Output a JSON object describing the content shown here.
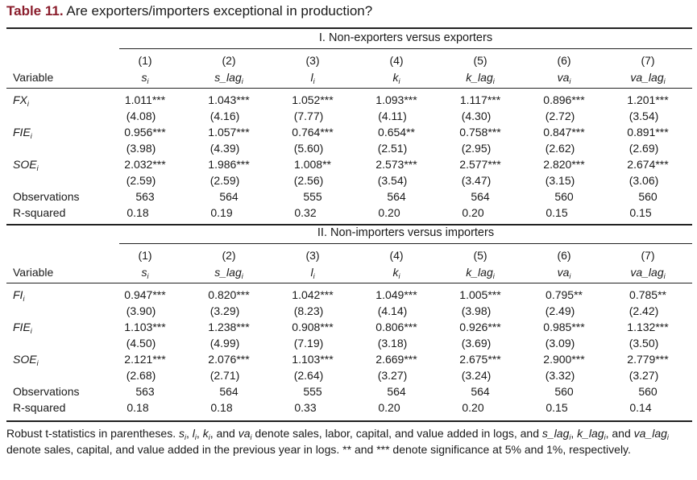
{
  "title": {
    "label": "Table 11.",
    "text": "Are exporters/importers exceptional in production?"
  },
  "variable_header": "Variable",
  "panels": [
    {
      "heading": "I. Non-exporters versus exporters",
      "columns": [
        {
          "num": "(1)",
          "base": "s",
          "sub": "i"
        },
        {
          "num": "(2)",
          "base": "s_lag",
          "sub": "i"
        },
        {
          "num": "(3)",
          "base": "l",
          "sub": "i"
        },
        {
          "num": "(4)",
          "base": "k",
          "sub": "i"
        },
        {
          "num": "(5)",
          "base": "k_lag",
          "sub": "i"
        },
        {
          "num": "(6)",
          "base": "va",
          "sub": "i"
        },
        {
          "num": "(7)",
          "base": "va_lag",
          "sub": "i"
        }
      ],
      "rows": [
        {
          "var": "FX",
          "sub": "i",
          "coef": [
            "1.011***",
            "1.043***",
            "1.052***",
            "1.093***",
            "1.117***",
            "0.896***",
            "1.201***"
          ],
          "t": [
            "(4.08)",
            "(4.16)",
            "(7.77)",
            "(4.11)",
            "(4.30)",
            "(2.72)",
            "(3.54)"
          ]
        },
        {
          "var": "FIE",
          "sub": "i",
          "coef": [
            "0.956***",
            "1.057***",
            "0.764***",
            "0.654**",
            "0.758***",
            "0.847***",
            "0.891***"
          ],
          "t": [
            "(3.98)",
            "(4.39)",
            "(5.60)",
            "(2.51)",
            "(2.95)",
            "(2.62)",
            "(2.69)"
          ]
        },
        {
          "var": "SOE",
          "sub": "i",
          "coef": [
            "2.032***",
            "1.986***",
            "1.008**",
            "2.573***",
            "2.577***",
            "2.820***",
            "2.674***"
          ],
          "t": [
            "(2.59)",
            "(2.59)",
            "(2.56)",
            "(3.54)",
            "(3.47)",
            "(3.15)",
            "(3.06)"
          ]
        }
      ],
      "observations": {
        "label": "Observations",
        "values": [
          "563",
          "564",
          "555",
          "564",
          "564",
          "560",
          "560"
        ]
      },
      "rsquared": {
        "label": "R-squared",
        "values": [
          "0.18",
          "0.19",
          "0.32",
          "0.20",
          "0.20",
          "0.15",
          "0.15"
        ]
      }
    },
    {
      "heading": "II. Non-importers versus importers",
      "columns": [
        {
          "num": "(1)",
          "base": "s",
          "sub": "i"
        },
        {
          "num": "(2)",
          "base": "s_lag",
          "sub": "i"
        },
        {
          "num": "(3)",
          "base": "l",
          "sub": "i"
        },
        {
          "num": "(4)",
          "base": "k",
          "sub": "i"
        },
        {
          "num": "(5)",
          "base": "k_lag",
          "sub": "i"
        },
        {
          "num": "(6)",
          "base": "va",
          "sub": "i"
        },
        {
          "num": "(7)",
          "base": "va_lag",
          "sub": "i"
        }
      ],
      "rows": [
        {
          "var": "FI",
          "sub": "i",
          "coef": [
            "0.947***",
            "0.820***",
            "1.042***",
            "1.049***",
            "1.005***",
            "0.795**",
            "0.785**"
          ],
          "t": [
            "(3.90)",
            "(3.29)",
            "(8.23)",
            "(4.14)",
            "(3.98)",
            "(2.49)",
            "(2.42)"
          ]
        },
        {
          "var": "FIE",
          "sub": "i",
          "coef": [
            "1.103***",
            "1.238***",
            "0.908***",
            "0.806***",
            "0.926***",
            "0.985***",
            "1.132***"
          ],
          "t": [
            "(4.50)",
            "(4.99)",
            "(7.19)",
            "(3.18)",
            "(3.69)",
            "(3.09)",
            "(3.50)"
          ]
        },
        {
          "var": "SOE",
          "sub": "i",
          "coef": [
            "2.121***",
            "2.076***",
            "1.103***",
            "2.669***",
            "2.675***",
            "2.900***",
            "2.779***"
          ],
          "t": [
            "(2.68)",
            "(2.71)",
            "(2.64)",
            "(3.27)",
            "(3.24)",
            "(3.32)",
            "(3.27)"
          ]
        }
      ],
      "observations": {
        "label": "Observations",
        "values": [
          "563",
          "564",
          "555",
          "564",
          "564",
          "560",
          "560"
        ]
      },
      "rsquared": {
        "label": "R-squared",
        "values": [
          "0.18",
          "0.18",
          "0.33",
          "0.20",
          "0.20",
          "0.15",
          "0.14"
        ]
      }
    }
  ],
  "note": {
    "p1": "Robust t-statistics in parentheses. ",
    "s": "s",
    "l": "l",
    "k": "k",
    "va": "va",
    "i": "i",
    "p2": ", ",
    "p3": ", and ",
    "p4": " denote sales, labor, capital, and value added in logs, and ",
    "slag": "s_lag",
    "klag": "k_lag",
    "valag": "va_lag",
    "p5": " denote sales, capital, and value added in the previous year in logs. ** and *** denote significance at 5% and 1%, respectively."
  }
}
